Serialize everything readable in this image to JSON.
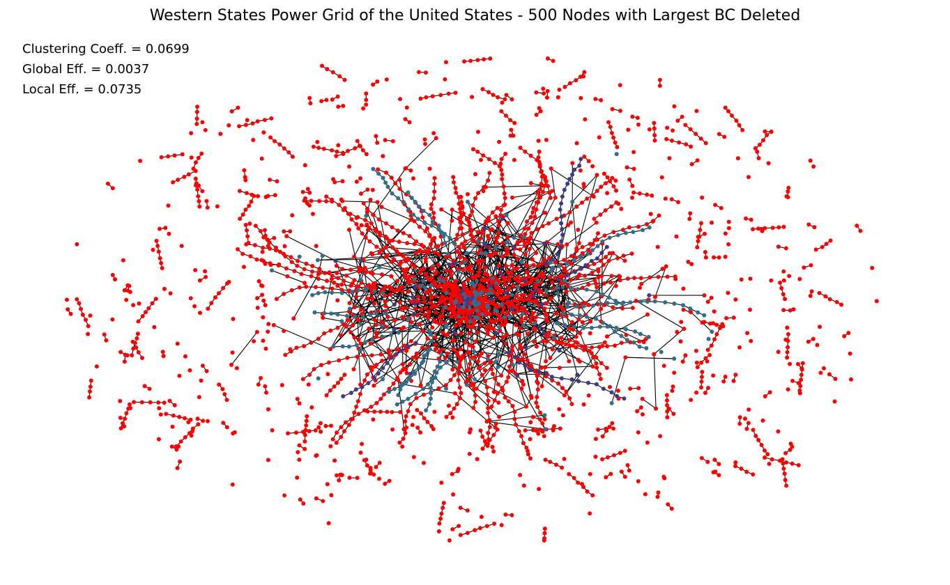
{
  "chart_data": {
    "type": "network",
    "title": "Western States Power Grid of the United States - 500 Nodes with Largest BC Deleted",
    "annotations": [
      "Clustering Coeff. = 0.0699",
      "Global Eff. = 0.0037",
      "Local Eff. = 0.0735"
    ],
    "metrics": {
      "clustering_coeff": 0.0699,
      "global_eff": 0.0037,
      "local_eff": 0.0735
    },
    "grid": false,
    "axes_visible": false,
    "colors": {
      "node_primary": "#ff0000",
      "node_secondary": "#2e6f8e",
      "node_tertiary": "#3b3b8c",
      "edge": "#000000",
      "background": "#ffffff"
    }
  }
}
